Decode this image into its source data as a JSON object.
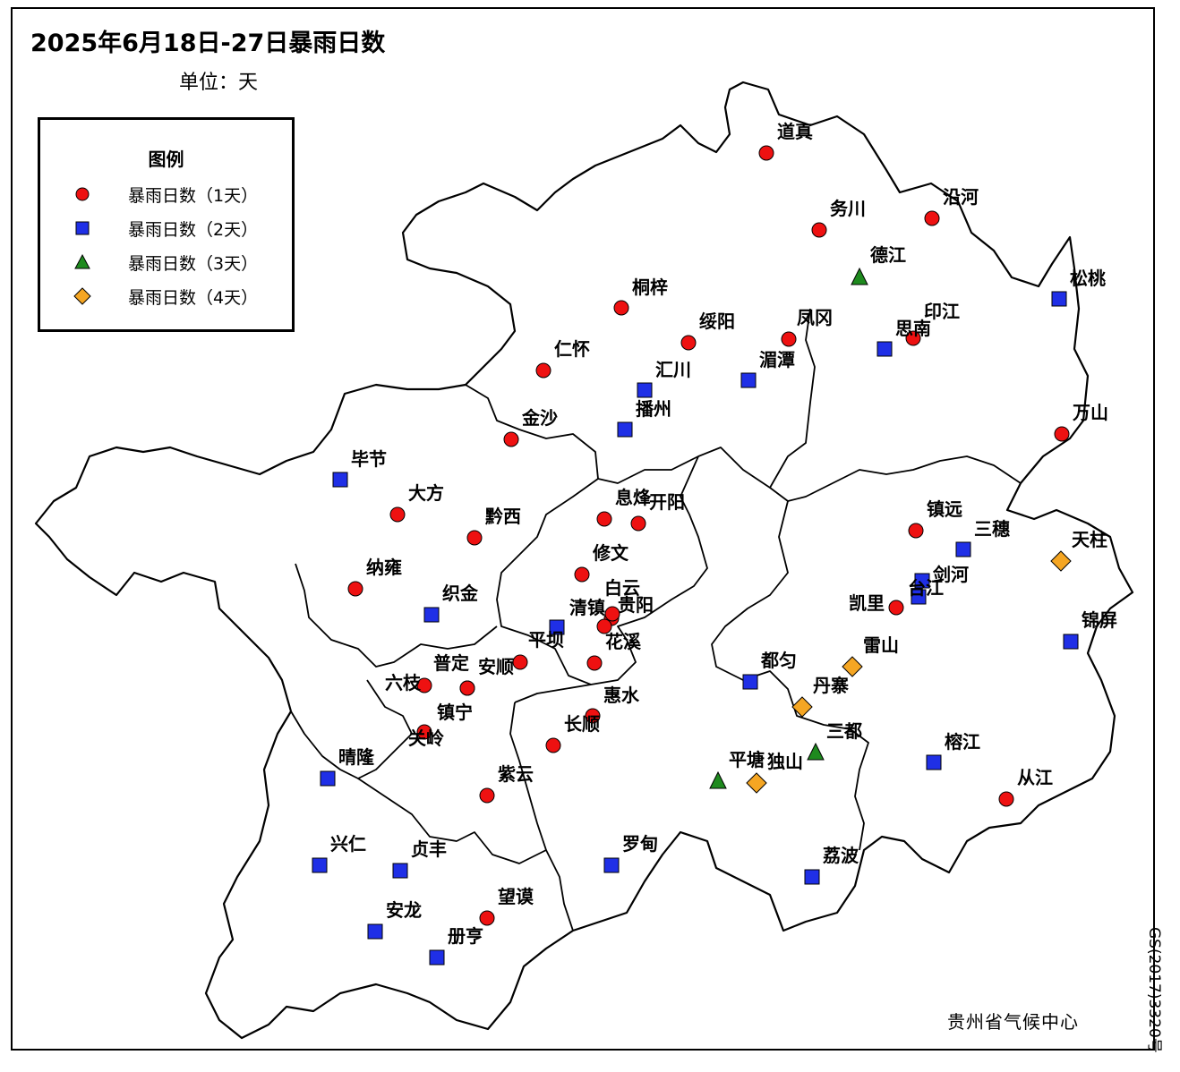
{
  "title": "2025年6月18日-27日暴雨日数",
  "unit": "单位：天",
  "legend": {
    "title": "图例",
    "items": [
      {
        "label": "暴雨日数（1天）",
        "symbol": "circle",
        "color": "#ee1111"
      },
      {
        "label": "暴雨日数（2天）",
        "symbol": "square",
        "color": "#1f2fe6"
      },
      {
        "label": "暴雨日数（3天）",
        "symbol": "triangle",
        "color": "#1e8a1e"
      },
      {
        "label": "暴雨日数（4天）",
        "symbol": "diamond",
        "color": "#f5a623"
      }
    ]
  },
  "credit": "贵州省气候中心",
  "map_code": "GS(2017)3320号",
  "stations": [
    {
      "name": "道真",
      "days": 1
    },
    {
      "name": "务川",
      "days": 1
    },
    {
      "name": "沿河",
      "days": 1
    },
    {
      "name": "德江",
      "days": 3
    },
    {
      "name": "松桃",
      "days": 2
    },
    {
      "name": "桐梓",
      "days": 1
    },
    {
      "name": "绥阳",
      "days": 1
    },
    {
      "name": "凤冈",
      "days": 1
    },
    {
      "name": "印江",
      "days": 1
    },
    {
      "name": "思南",
      "days": 2
    },
    {
      "name": "仁怀",
      "days": 1
    },
    {
      "name": "汇川",
      "days": 2
    },
    {
      "name": "湄潭",
      "days": 2
    },
    {
      "name": "播州",
      "days": 2
    },
    {
      "name": "金沙",
      "days": 1
    },
    {
      "name": "万山",
      "days": 1
    },
    {
      "name": "毕节",
      "days": 2
    },
    {
      "name": "大方",
      "days": 1
    },
    {
      "name": "黔西",
      "days": 1
    },
    {
      "name": "息烽",
      "days": 1
    },
    {
      "name": "开阳",
      "days": 1
    },
    {
      "name": "镇远",
      "days": 1
    },
    {
      "name": "三穗",
      "days": 2
    },
    {
      "name": "天柱",
      "days": 4
    },
    {
      "name": "修文",
      "days": 1
    },
    {
      "name": "纳雍",
      "days": 1
    },
    {
      "name": "剑河",
      "days": 2
    },
    {
      "name": "白云",
      "days": 1
    },
    {
      "name": "织金",
      "days": 2
    },
    {
      "name": "台江",
      "days": 2
    },
    {
      "name": "清镇",
      "days": 1
    },
    {
      "name": "贵阳",
      "days": 1
    },
    {
      "name": "凯里",
      "days": 1
    },
    {
      "name": "锦屏",
      "days": 2
    },
    {
      "name": "平坝",
      "days": 2
    },
    {
      "name": "花溪",
      "days": 1
    },
    {
      "name": "雷山",
      "days": 4
    },
    {
      "name": "普定",
      "days": 1
    },
    {
      "name": "安顺",
      "days": 1
    },
    {
      "name": "都匀",
      "days": 2
    },
    {
      "name": "六枝",
      "days": 1
    },
    {
      "name": "镇宁",
      "days": 1
    },
    {
      "name": "丹寨",
      "days": 4
    },
    {
      "name": "惠水",
      "days": 1
    },
    {
      "name": "三都",
      "days": 3
    },
    {
      "name": "长顺",
      "days": 1
    },
    {
      "name": "关岭",
      "days": 1
    },
    {
      "name": "晴隆",
      "days": 2
    },
    {
      "name": "榕江",
      "days": 2
    },
    {
      "name": "平塘",
      "days": 3
    },
    {
      "name": "独山",
      "days": 4
    },
    {
      "name": "紫云",
      "days": 1
    },
    {
      "name": "从江",
      "days": 1
    },
    {
      "name": "兴仁",
      "days": 2
    },
    {
      "name": "贞丰",
      "days": 2
    },
    {
      "name": "罗甸",
      "days": 2
    },
    {
      "name": "荔波",
      "days": 2
    },
    {
      "name": "望谟",
      "days": 1
    },
    {
      "name": "安龙",
      "days": 2
    },
    {
      "name": "册亨",
      "days": 2
    }
  ]
}
